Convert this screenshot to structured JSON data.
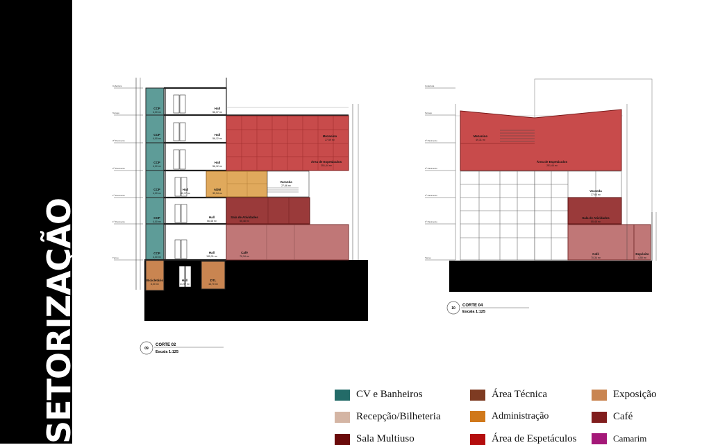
{
  "sidebar": {
    "title": "SETORIZAÇÃO"
  },
  "sections": [
    {
      "number": "09",
      "title": "CORTE 02",
      "scale": "Escala 1:125",
      "levels": [
        "Cobertura",
        "Terraço",
        "3º Pavimento",
        "2º Pavimento",
        "1º Pavimento",
        "1º Pavimento",
        "Térreo"
      ],
      "rooms": [
        {
          "name": "CCP",
          "area": "4,00 m²"
        },
        {
          "name": "CCP",
          "area": "4,00 m²"
        },
        {
          "name": "CCP",
          "area": "4,00 m²"
        },
        {
          "name": "CCP",
          "area": "4,00 m²"
        },
        {
          "name": "CCP",
          "area": "4,00 m²"
        },
        {
          "name": "CCP",
          "area": "4,00 m²"
        },
        {
          "name": "Hall",
          "area": "56,37 m²"
        },
        {
          "name": "Hall",
          "area": "56,12 m²"
        },
        {
          "name": "Hall",
          "area": "56,12 m²"
        },
        {
          "name": "Hall",
          "area": "40,17 m²"
        },
        {
          "name": "Hall",
          "area": "56,48 m²"
        },
        {
          "name": "Hall",
          "area": "135,31 m²"
        },
        {
          "name": "Hall",
          "area": "41,97 m²"
        },
        {
          "name": "Mezanino",
          "area": "27,59 m²"
        },
        {
          "name": "Área de Espetáculos",
          "area": "251,44 m²"
        },
        {
          "name": "ADM",
          "area": "33,34 m²"
        },
        {
          "name": "Varanda",
          "area": "27,66 m²"
        },
        {
          "name": "Sala de Atividades",
          "area": "55,48 m²"
        },
        {
          "name": "Café",
          "area": "70,34 m²"
        },
        {
          "name": "Bicicletário",
          "area": "6,00 m²"
        },
        {
          "name": "DTL",
          "area": "16,70 m²"
        }
      ]
    },
    {
      "number": "10",
      "title": "CORTE 04",
      "scale": "Escala 1:125",
      "levels": [
        "Cobertura",
        "Terraço",
        "3º Pavimento",
        "2º Pavimento",
        "1º Pavimento",
        "1º Pavimento",
        "Térreo"
      ],
      "rooms": [
        {
          "name": "Mezanino",
          "area": "49,31 m²"
        },
        {
          "name": "Área de Espetáculos",
          "area": "251,44 m²"
        },
        {
          "name": "Varanda",
          "area": "27,66 m²"
        },
        {
          "name": "Sala de Atividades",
          "area": "55,48 m²"
        },
        {
          "name": "Café",
          "area": "70,34 m²"
        },
        {
          "name": "Depósito",
          "area": "4,50 m²"
        }
      ]
    }
  ],
  "legend": [
    {
      "label": "CV e Banheiros",
      "color": "#236b68"
    },
    {
      "label": "Área Técnica",
      "color": "#7e3b22"
    },
    {
      "label": "Exposição",
      "color": "#c98551"
    },
    {
      "label": "Recepção/Bilheteria",
      "color": "#d4b5a4"
    },
    {
      "label": "Administração",
      "color": "#d0781a"
    },
    {
      "label": "Café",
      "color": "#801d1d"
    },
    {
      "label": "Sala Multiuso",
      "color": "#6a0a0a"
    },
    {
      "label": "Área de Espetáculos",
      "color": "#b40d0d"
    },
    {
      "label": "Camarim",
      "color": "#a41878"
    }
  ]
}
